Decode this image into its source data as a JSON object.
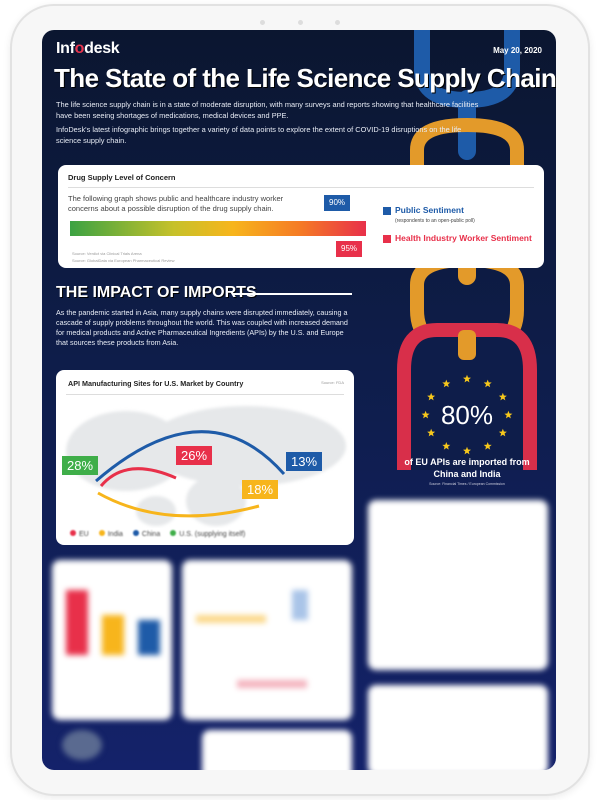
{
  "header": {
    "logo": "Infodesk",
    "logo_parts": [
      "Inf",
      "o",
      "desk"
    ],
    "date": "May 20, 2020",
    "title": "The State of the Life Science Supply Chain",
    "intro": [
      "The life science supply chain is in a state of moderate disruption, with many surveys and reports showing that healthcare facilities have been seeing shortages of medications, medical devices and PPE.",
      "InfoDesk's latest infographic brings together a variety of data points to explore the extent of COVID-19 disruptions on the life science supply chain."
    ]
  },
  "concern": {
    "title": "Drug Supply Level of Concern",
    "description": "The following graph shows public and healthcare industry worker concerns about a possible disruption of the drug supply chain.",
    "public": {
      "label": "Public Sentiment",
      "sub": "(respondents to an open-public poll)",
      "value": "90%",
      "color": "#1e5ba8"
    },
    "worker": {
      "label": "Health Industry Worker Sentiment",
      "value": "95%",
      "color": "#e8304a"
    },
    "sources": [
      "Source: Verdict via Clinical Trials Arena",
      "Source: GlobalData via European Pharmaceutical Review"
    ]
  },
  "imports": {
    "heading": "THE IMPACT OF IMPORTS",
    "text": "As the pandemic started in Asia, many supply chains were disrupted immediately, causing a cascade of supply problems throughout the world. This was coupled with increased demand for medical products and Active Pharmaceutical Ingredients (APIs) by the U.S. and Europe that sources these products from Asia."
  },
  "map": {
    "title": "API Manufacturing Sites for U.S. Market by Country",
    "source": "Source: FDA",
    "values": [
      {
        "label": "U.S. (supplying itself)",
        "value": "28%",
        "color": "#3fae49"
      },
      {
        "label": "EU",
        "value": "26%",
        "color": "#e8304a"
      },
      {
        "label": "China",
        "value": "13%",
        "color": "#1e5ba8"
      },
      {
        "label": "India",
        "value": "18%",
        "color": "#f7b51c"
      }
    ],
    "legend": [
      "EU",
      "India",
      "China",
      "U.S. (supplying itself)"
    ]
  },
  "eu": {
    "value": "80%",
    "text": "of EU APIs are imported from China and India",
    "source": "Source: Financial Times / European Commission"
  }
}
